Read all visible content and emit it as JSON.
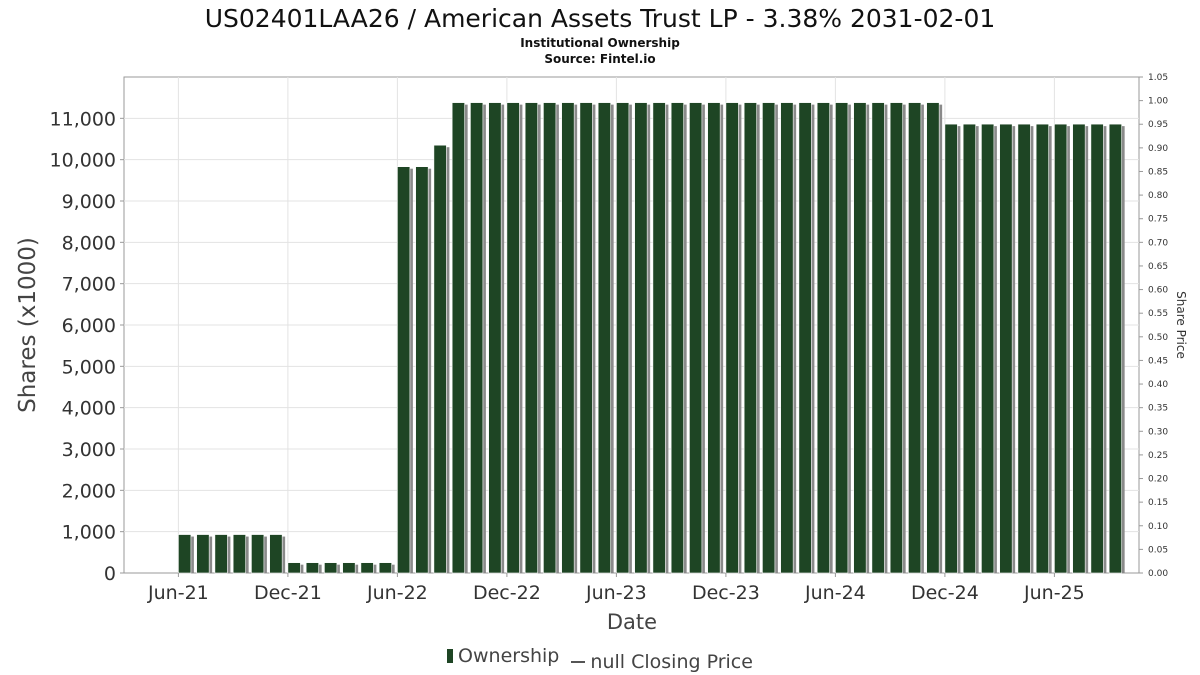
{
  "chart_data": {
    "type": "bar",
    "title": "US02401LAA26 / American Assets Trust LP - 3.38% 2031-02-01",
    "subtitle_lines": [
      "Institutional Ownership",
      "Source: Fintel.io"
    ],
    "xlabel": "Date",
    "ylabel": "Shares (x1000)",
    "y2label": "Share Price",
    "x_tick_labels": [
      "Jun-21",
      "Dec-21",
      "Jun-22",
      "Dec-22",
      "Jun-23",
      "Dec-23",
      "Jun-24",
      "Dec-24",
      "Jun-25"
    ],
    "y_tick_labels": [
      "0",
      "1,000",
      "2,000",
      "3,000",
      "4,000",
      "5,000",
      "6,000",
      "7,000",
      "8,000",
      "9,000",
      "10,000",
      "11,000"
    ],
    "y2_tick_labels": [
      "0.00",
      "0.05",
      "0.10",
      "0.15",
      "0.20",
      "0.25",
      "0.30",
      "0.35",
      "0.40",
      "0.45",
      "0.50",
      "0.55",
      "0.60",
      "0.65",
      "0.70",
      "0.75",
      "0.80",
      "0.85",
      "0.90",
      "0.95",
      "1.00",
      "1.05"
    ],
    "ylim": [
      0,
      12000
    ],
    "y2lim": [
      0,
      1.05
    ],
    "grid": true,
    "legend_position": "bottom",
    "series": [
      {
        "name": "Ownership",
        "color": "#1e4524",
        "values": [
          930,
          930,
          930,
          930,
          930,
          930,
          250,
          250,
          250,
          250,
          250,
          250,
          9830,
          9830,
          10350,
          11380,
          11380,
          11380,
          11380,
          11380,
          11380,
          11380,
          11380,
          11380,
          11380,
          11380,
          11380,
          11380,
          11380,
          11380,
          11380,
          11380,
          11380,
          11380,
          11380,
          11380,
          11380,
          11380,
          11380,
          11380,
          11380,
          11380,
          10860,
          10860,
          10860,
          10860,
          10860,
          10860,
          10860,
          10860,
          10860,
          10860
        ]
      },
      {
        "name": "null Closing Price",
        "color": "#555555",
        "values": []
      }
    ]
  }
}
